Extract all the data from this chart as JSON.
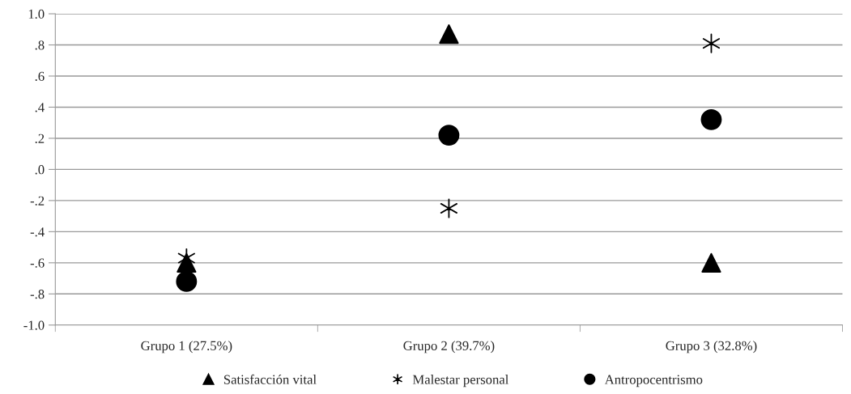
{
  "chart_data": {
    "type": "scatter",
    "categories": [
      "Grupo 1 (27.5%)",
      "Grupo 2 (39.7%)",
      "Grupo 3 (32.8%)"
    ],
    "series": [
      {
        "name": "Satisfacción vital",
        "color": "#000000",
        "marker": "triangle",
        "values": [
          -0.6,
          0.87,
          -0.6
        ]
      },
      {
        "name": "Malestar personal",
        "color": "#000000",
        "marker": "cross",
        "values": [
          -0.57,
          -0.25,
          0.81
        ]
      },
      {
        "name": "Antropocentrismo",
        "color": "#000000",
        "marker": "circle",
        "values": [
          -0.72,
          0.22,
          0.32
        ]
      }
    ],
    "ylim": [
      -1.0,
      1.0
    ],
    "yticks": [
      {
        "value": -1.0,
        "label": "-1.0"
      },
      {
        "value": -0.8,
        "label": "-.8"
      },
      {
        "value": -0.6,
        "label": "-.6"
      },
      {
        "value": -0.4,
        "label": "-.4"
      },
      {
        "value": -0.2,
        "label": "-.2"
      },
      {
        "value": 0.0,
        "label": ".0"
      },
      {
        "value": 0.2,
        "label": ".2"
      },
      {
        "value": 0.4,
        "label": ".4"
      },
      {
        "value": 0.6,
        "label": ".6"
      },
      {
        "value": 0.8,
        "label": ".8"
      },
      {
        "value": 1.0,
        "label": "1.0"
      }
    ],
    "grid": "y",
    "legend": "bottom"
  }
}
